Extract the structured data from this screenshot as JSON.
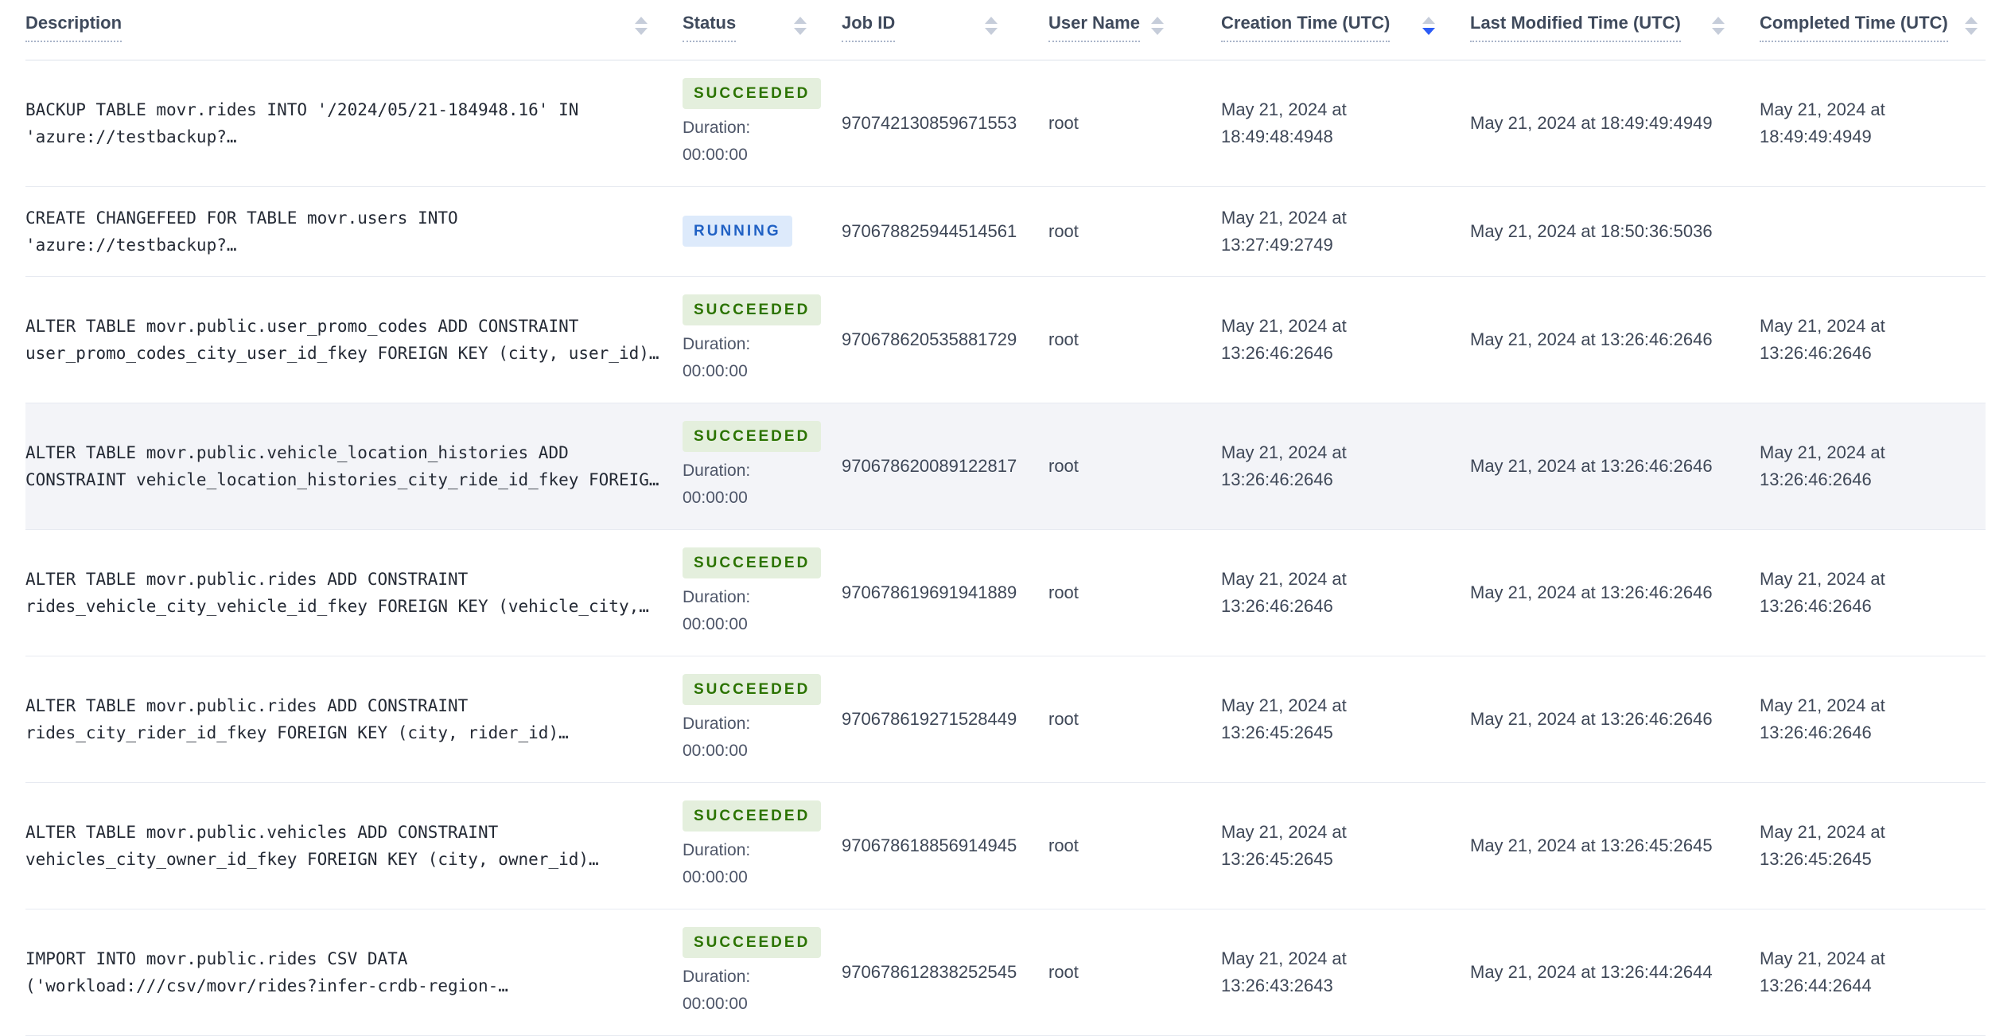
{
  "colors": {
    "sort_active": "#2c5cf6",
    "succeeded_badge_bg": "#e4efdd",
    "succeeded_badge_text": "#2b7300",
    "running_badge_bg": "#ddeafb",
    "running_badge_text": "#2061c4",
    "row_highlight_bg": "#f3f4f8"
  },
  "table": {
    "columns": [
      {
        "label": "Description",
        "sort": "none"
      },
      {
        "label": "Status",
        "sort": "none"
      },
      {
        "label": "Job ID",
        "sort": "none"
      },
      {
        "label": "User Name",
        "sort": "none"
      },
      {
        "label": "Creation Time (UTC)",
        "sort": "desc"
      },
      {
        "label": "Last Modified Time (UTC)",
        "sort": "none"
      },
      {
        "label": "Completed Time (UTC)",
        "sort": "none"
      }
    ],
    "rows": [
      {
        "description_line1": "BACKUP TABLE movr.rides INTO '/2024/05/21-184948.16' IN",
        "description_line2": "'azure://testbackup?…",
        "status": "SUCCEEDED",
        "duration_label": "Duration:",
        "duration_value": "00:00:00",
        "job_id": "970742130859671553",
        "user_name": "root",
        "creation_time": "May 21, 2024 at 18:49:48:4948",
        "last_modified_time": "May 21, 2024 at 18:49:49:4949",
        "completed_time": "May 21, 2024 at 18:49:49:4949",
        "highlighted": false
      },
      {
        "description_line1": "CREATE CHANGEFEED FOR TABLE movr.users INTO",
        "description_line2": "'azure://testbackup?…",
        "status": "RUNNING",
        "duration_label": null,
        "duration_value": null,
        "job_id": "970678825944514561",
        "user_name": "root",
        "creation_time": "May 21, 2024 at 13:27:49:2749",
        "last_modified_time": "May 21, 2024 at 18:50:36:5036",
        "completed_time": "",
        "highlighted": false
      },
      {
        "description_line1": "ALTER TABLE movr.public.user_promo_codes ADD CONSTRAINT",
        "description_line2": "user_promo_codes_city_user_id_fkey FOREIGN KEY (city, user_id)…",
        "status": "SUCCEEDED",
        "duration_label": "Duration:",
        "duration_value": "00:00:00",
        "job_id": "970678620535881729",
        "user_name": "root",
        "creation_time": "May 21, 2024 at 13:26:46:2646",
        "last_modified_time": "May 21, 2024 at 13:26:46:2646",
        "completed_time": "May 21, 2024 at 13:26:46:2646",
        "highlighted": false
      },
      {
        "description_line1": "ALTER TABLE movr.public.vehicle_location_histories ADD",
        "description_line2": "CONSTRAINT vehicle_location_histories_city_ride_id_fkey FOREIG…",
        "status": "SUCCEEDED",
        "duration_label": "Duration:",
        "duration_value": "00:00:00",
        "job_id": "970678620089122817",
        "user_name": "root",
        "creation_time": "May 21, 2024 at 13:26:46:2646",
        "last_modified_time": "May 21, 2024 at 13:26:46:2646",
        "completed_time": "May 21, 2024 at 13:26:46:2646",
        "highlighted": true
      },
      {
        "description_line1": "ALTER TABLE movr.public.rides ADD CONSTRAINT",
        "description_line2": "rides_vehicle_city_vehicle_id_fkey FOREIGN KEY (vehicle_city,…",
        "status": "SUCCEEDED",
        "duration_label": "Duration:",
        "duration_value": "00:00:00",
        "job_id": "970678619691941889",
        "user_name": "root",
        "creation_time": "May 21, 2024 at 13:26:46:2646",
        "last_modified_time": "May 21, 2024 at 13:26:46:2646",
        "completed_time": "May 21, 2024 at 13:26:46:2646",
        "highlighted": false
      },
      {
        "description_line1": "ALTER TABLE movr.public.rides ADD CONSTRAINT",
        "description_line2": "rides_city_rider_id_fkey FOREIGN KEY (city, rider_id)…",
        "status": "SUCCEEDED",
        "duration_label": "Duration:",
        "duration_value": "00:00:00",
        "job_id": "970678619271528449",
        "user_name": "root",
        "creation_time": "May 21, 2024 at 13:26:45:2645",
        "last_modified_time": "May 21, 2024 at 13:26:46:2646",
        "completed_time": "May 21, 2024 at 13:26:46:2646",
        "highlighted": false
      },
      {
        "description_line1": "ALTER TABLE movr.public.vehicles ADD CONSTRAINT",
        "description_line2": "vehicles_city_owner_id_fkey FOREIGN KEY (city, owner_id)…",
        "status": "SUCCEEDED",
        "duration_label": "Duration:",
        "duration_value": "00:00:00",
        "job_id": "970678618856914945",
        "user_name": "root",
        "creation_time": "May 21, 2024 at 13:26:45:2645",
        "last_modified_time": "May 21, 2024 at 13:26:45:2645",
        "completed_time": "May 21, 2024 at 13:26:45:2645",
        "highlighted": false
      },
      {
        "description_line1": "IMPORT INTO movr.public.rides CSV DATA",
        "description_line2": "('workload:///csv/movr/rides?infer-crdb-region-…",
        "status": "SUCCEEDED",
        "duration_label": "Duration:",
        "duration_value": "00:00:00",
        "job_id": "970678612838252545",
        "user_name": "root",
        "creation_time": "May 21, 2024 at 13:26:43:2643",
        "last_modified_time": "May 21, 2024 at 13:26:44:2644",
        "completed_time": "May 21, 2024 at 13:26:44:2644",
        "highlighted": false
      }
    ]
  }
}
